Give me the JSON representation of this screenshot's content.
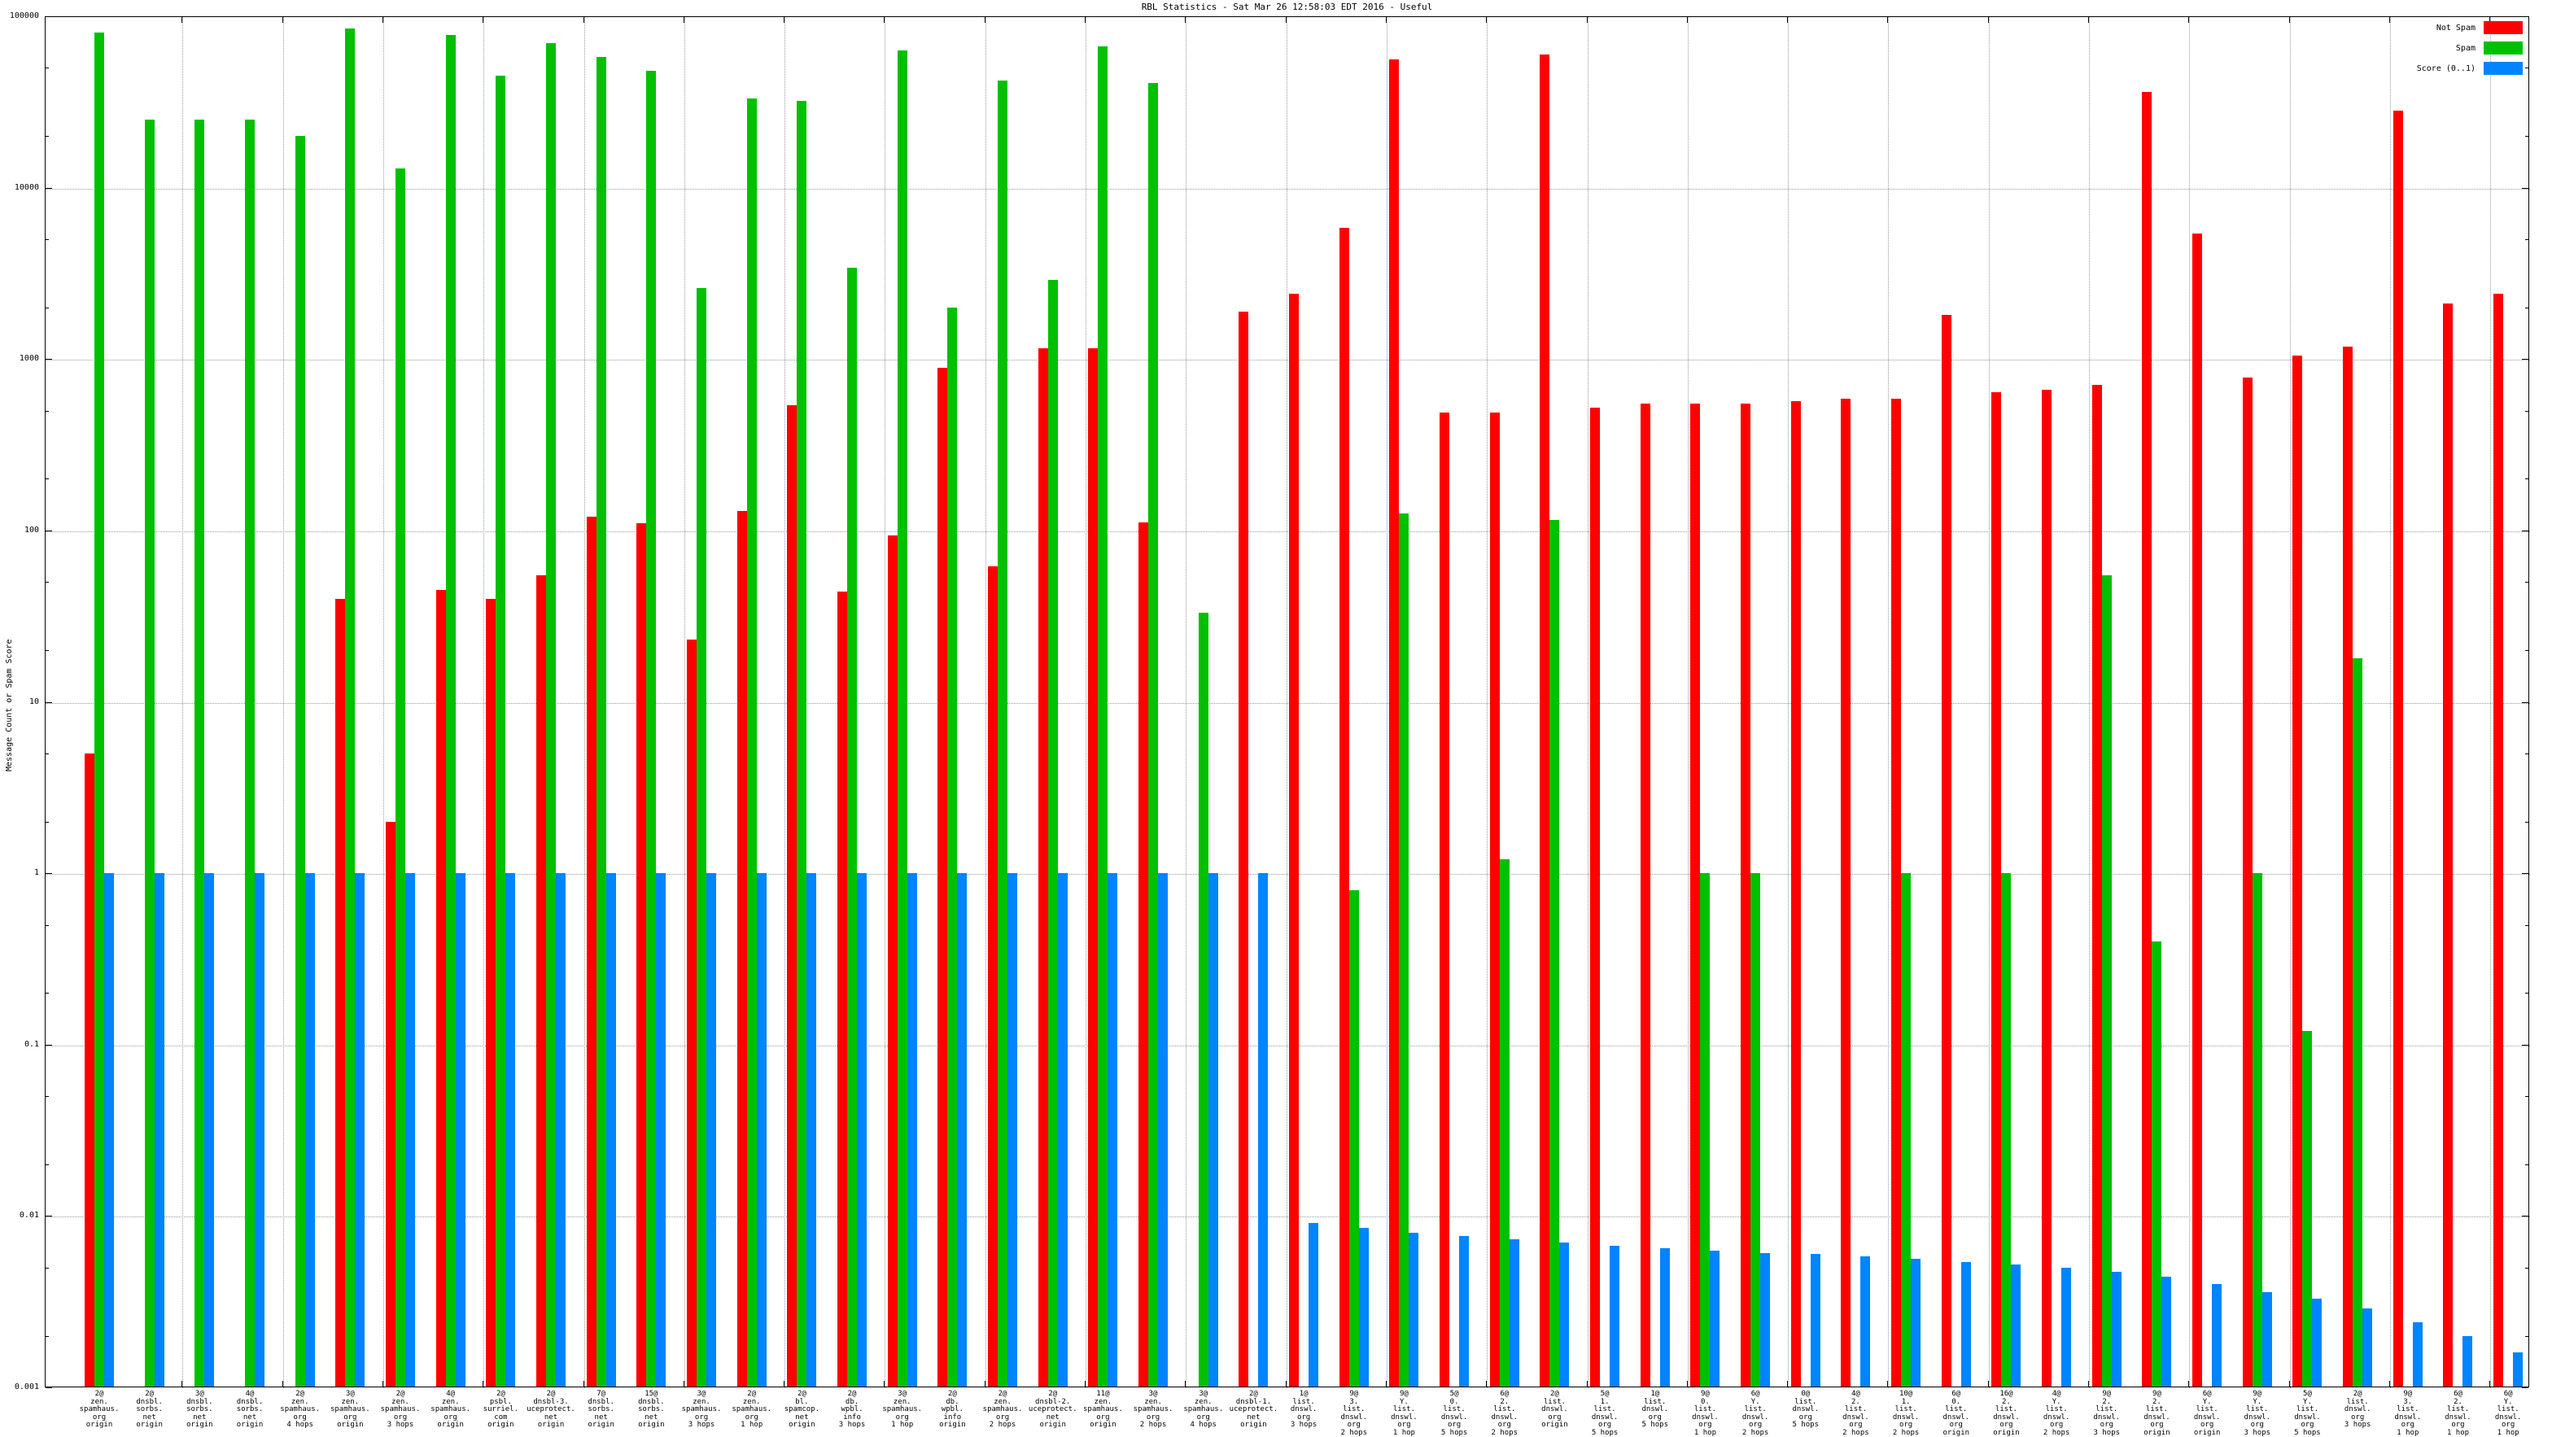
{
  "title": "RBL Statistics - Sat Mar 26 12:58:03 EDT 2016 - Useful",
  "ylabel": "Message Count or Spam Score",
  "colors": {
    "not_spam": "#ff0000",
    "spam": "#00c000",
    "score": "#0084ff",
    "grid": "#9a9a9a"
  },
  "legend": [
    {
      "label": "Not Spam",
      "color": "#ff0000"
    },
    {
      "label": "Spam",
      "color": "#00c000"
    },
    {
      "label": "Score (0..1)",
      "color": "#0084ff"
    }
  ],
  "chart_data": {
    "type": "bar",
    "yscale": "log",
    "ylim": [
      0.001,
      100000
    ],
    "ytick_labels": [
      "100000",
      "10000",
      "1000",
      "100",
      "10",
      "1",
      "0.1",
      "0.01",
      "0.001"
    ],
    "xlabel": "",
    "ylabel": "Message Count or Spam Score",
    "title": "RBL Statistics - Sat Mar 26 12:58:03 EDT 2016 - Useful",
    "legend_position": "top-right",
    "grid": true,
    "series_names": [
      "Not Spam",
      "Spam",
      "Score (0..1)"
    ],
    "groups": [
      {
        "label_lines": [
          "2@",
          "zen.",
          "spamhaus.",
          "org",
          "origin"
        ],
        "not_spam": 5,
        "spam": 80000,
        "score": 1
      },
      {
        "label_lines": [
          "2@",
          "dnsbl.",
          "sorbs.",
          "net",
          "origin"
        ],
        "not_spam": 0,
        "spam": 25000,
        "score": 1
      },
      {
        "label_lines": [
          "3@",
          "dnsbl.",
          "sorbs.",
          "net",
          "origin"
        ],
        "not_spam": 0,
        "spam": 25000,
        "score": 1
      },
      {
        "label_lines": [
          "4@",
          "dnsbl.",
          "sorbs.",
          "net",
          "origin"
        ],
        "not_spam": 0,
        "spam": 25000,
        "score": 1
      },
      {
        "label_lines": [
          "2@",
          "zen.",
          "spamhaus.",
          "org",
          "4 hops"
        ],
        "not_spam": 0,
        "spam": 20000,
        "score": 1
      },
      {
        "label_lines": [
          "3@",
          "zen.",
          "spamhaus.",
          "org",
          "origin"
        ],
        "not_spam": 40,
        "spam": 85000,
        "score": 1
      },
      {
        "label_lines": [
          "2@",
          "zen.",
          "spamhaus.",
          "org",
          "3 hops"
        ],
        "not_spam": 2,
        "spam": 13000,
        "score": 1
      },
      {
        "label_lines": [
          "4@",
          "zen.",
          "spamhaus.",
          "org",
          "origin"
        ],
        "not_spam": 45,
        "spam": 78000,
        "score": 1
      },
      {
        "label_lines": [
          "2@",
          "psbl.",
          "surriel.",
          "com",
          "origin"
        ],
        "not_spam": 40,
        "spam": 45000,
        "score": 1
      },
      {
        "label_lines": [
          "2@",
          "dnsbl-3.",
          "uceprotect.",
          "net",
          "origin"
        ],
        "not_spam": 55,
        "spam": 70000,
        "score": 1
      },
      {
        "label_lines": [
          "7@",
          "dnsbl.",
          "sorbs.",
          "net",
          "origin"
        ],
        "not_spam": 120,
        "spam": 58000,
        "score": 1
      },
      {
        "label_lines": [
          "15@",
          "dnsbl.",
          "sorbs.",
          "net",
          "origin"
        ],
        "not_spam": 110,
        "spam": 48000,
        "score": 1
      },
      {
        "label_lines": [
          "3@",
          "zen.",
          "spamhaus.",
          "org",
          "3 hops"
        ],
        "not_spam": 23,
        "spam": 2600,
        "score": 1
      },
      {
        "label_lines": [
          "2@",
          "zen.",
          "spamhaus.",
          "org",
          "1 hop"
        ],
        "not_spam": 130,
        "spam": 33000,
        "score": 1
      },
      {
        "label_lines": [
          "2@",
          "bl.",
          "spamcop.",
          "net",
          "origin"
        ],
        "not_spam": 540,
        "spam": 32000,
        "score": 1
      },
      {
        "label_lines": [
          "2@",
          "db.",
          "wpbl.",
          "info",
          "3 hops"
        ],
        "not_spam": 44,
        "spam": 3400,
        "score": 1
      },
      {
        "label_lines": [
          "3@",
          "zen.",
          "spamhaus.",
          "org",
          "1 hop"
        ],
        "not_spam": 94,
        "spam": 63000,
        "score": 1
      },
      {
        "label_lines": [
          "2@",
          "db.",
          "wpbl.",
          "info",
          "origin"
        ],
        "not_spam": 890,
        "spam": 2000,
        "score": 1
      },
      {
        "label_lines": [
          "2@",
          "zen.",
          "spamhaus.",
          "org",
          "2 hops"
        ],
        "not_spam": 62,
        "spam": 42000,
        "score": 1
      },
      {
        "label_lines": [
          "2@",
          "dnsbl-2.",
          "uceprotect.",
          "net",
          "origin"
        ],
        "not_spam": 1160,
        "spam": 2900,
        "score": 1
      },
      {
        "label_lines": [
          "11@",
          "zen.",
          "spamhaus.",
          "org",
          "origin"
        ],
        "not_spam": 1150,
        "spam": 67000,
        "score": 1
      },
      {
        "label_lines": [
          "3@",
          "zen.",
          "spamhaus.",
          "org",
          "2 hops"
        ],
        "not_spam": 112,
        "spam": 41000,
        "score": 1
      },
      {
        "label_lines": [
          "3@",
          "zen.",
          "spamhaus.",
          "org",
          "4 hops"
        ],
        "not_spam": 0,
        "spam": 33,
        "score": 1
      },
      {
        "label_lines": [
          "2@",
          "dnsbl-1.",
          "uceprotect.",
          "net",
          "origin"
        ],
        "not_spam": 1900,
        "spam": 0,
        "score": 1
      },
      {
        "label_lines": [
          "1@",
          "list.",
          "dnswl.",
          "org",
          "3 hops"
        ],
        "not_spam": 2400,
        "spam": 0,
        "score": 0.0091
      },
      {
        "label_lines": [
          "9@",
          "3.",
          "list.",
          "dnswl.",
          "org",
          "2 hops"
        ],
        "not_spam": 5800,
        "spam": 0.8,
        "score": 0.0085
      },
      {
        "label_lines": [
          "9@",
          "Y.",
          "list.",
          "dnswl.",
          "org",
          "1 hop"
        ],
        "not_spam": 56000,
        "spam": 125,
        "score": 0.008
      },
      {
        "label_lines": [
          "5@",
          "0.",
          "list.",
          "dnswl.",
          "org",
          "5 hops"
        ],
        "not_spam": 490,
        "spam": 0,
        "score": 0.0076
      },
      {
        "label_lines": [
          "6@",
          "2.",
          "list.",
          "dnswl.",
          "org",
          "2 hops"
        ],
        "not_spam": 490,
        "spam": 1.2,
        "score": 0.0073
      },
      {
        "label_lines": [
          "2@",
          "list.",
          "dnswl.",
          "org",
          "origin"
        ],
        "not_spam": 60000,
        "spam": 115,
        "score": 0.007
      },
      {
        "label_lines": [
          "5@",
          "1.",
          "list.",
          "dnswl.",
          "org",
          "5 hops"
        ],
        "not_spam": 520,
        "spam": 0,
        "score": 0.0067
      },
      {
        "label_lines": [
          "1@",
          "list.",
          "dnswl.",
          "org",
          "5 hops"
        ],
        "not_spam": 550,
        "spam": 0,
        "score": 0.0065
      },
      {
        "label_lines": [
          "9@",
          "0.",
          "list.",
          "dnswl.",
          "org",
          "1 hop"
        ],
        "not_spam": 550,
        "spam": 1,
        "score": 0.0063
      },
      {
        "label_lines": [
          "6@",
          "Y.",
          "list.",
          "dnswl.",
          "org",
          "2 hops"
        ],
        "not_spam": 550,
        "spam": 1,
        "score": 0.0061
      },
      {
        "label_lines": [
          "0@",
          "list.",
          "dnswl.",
          "org",
          "5 hops"
        ],
        "not_spam": 570,
        "spam": 0,
        "score": 0.006
      },
      {
        "label_lines": [
          "4@",
          "2.",
          "list.",
          "dnswl.",
          "org",
          "2 hops"
        ],
        "not_spam": 590,
        "spam": 0,
        "score": 0.0058
      },
      {
        "label_lines": [
          "10@",
          "1.",
          "list.",
          "dnswl.",
          "org",
          "2 hops"
        ],
        "not_spam": 590,
        "spam": 1,
        "score": 0.0056
      },
      {
        "label_lines": [
          "6@",
          "0.",
          "list.",
          "dnswl.",
          "org",
          "origin"
        ],
        "not_spam": 1800,
        "spam": 0,
        "score": 0.0054
      },
      {
        "label_lines": [
          "16@",
          "2.",
          "list.",
          "dnswl.",
          "org",
          "origin"
        ],
        "not_spam": 640,
        "spam": 1,
        "score": 0.0052
      },
      {
        "label_lines": [
          "4@",
          "Y.",
          "list.",
          "dnswl.",
          "org",
          "2 hops"
        ],
        "not_spam": 660,
        "spam": 0,
        "score": 0.005
      },
      {
        "label_lines": [
          "9@",
          "2.",
          "list.",
          "dnswl.",
          "org",
          "3 hops"
        ],
        "not_spam": 710,
        "spam": 55,
        "score": 0.0047
      },
      {
        "label_lines": [
          "9@",
          "2.",
          "list.",
          "dnswl.",
          "org",
          "origin"
        ],
        "not_spam": 36000,
        "spam": 0.4,
        "score": 0.0044
      },
      {
        "label_lines": [
          "6@",
          "Y.",
          "list.",
          "dnswl.",
          "org",
          "origin"
        ],
        "not_spam": 5400,
        "spam": 0,
        "score": 0.004
      },
      {
        "label_lines": [
          "9@",
          "Y.",
          "list.",
          "dnswl.",
          "org",
          "3 hops"
        ],
        "not_spam": 780,
        "spam": 1,
        "score": 0.0036
      },
      {
        "label_lines": [
          "5@",
          "Y.",
          "list.",
          "dnswl.",
          "org",
          "5 hops"
        ],
        "not_spam": 1050,
        "spam": 0.12,
        "score": 0.0033
      },
      {
        "label_lines": [
          "2@",
          "list.",
          "dnswl.",
          "org",
          "3 hops"
        ],
        "not_spam": 1180,
        "spam": 18,
        "score": 0.0029
      },
      {
        "label_lines": [
          "9@",
          "3.",
          "list.",
          "dnswl.",
          "org",
          "1 hop"
        ],
        "not_spam": 28000,
        "spam": 0,
        "score": 0.0024
      },
      {
        "label_lines": [
          "6@",
          "2.",
          "list.",
          "dnswl.",
          "org",
          "1 hop"
        ],
        "not_spam": 2100,
        "spam": 0,
        "score": 0.002
      },
      {
        "label_lines": [
          "6@",
          "Y.",
          "list.",
          "dnswl.",
          "org",
          "1 hop"
        ],
        "not_spam": 2400,
        "spam": 0,
        "score": 0.0016
      }
    ]
  }
}
